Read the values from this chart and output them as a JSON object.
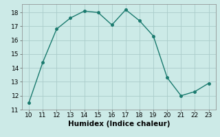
{
  "x": [
    10,
    11,
    12,
    13,
    14,
    15,
    16,
    17,
    18,
    19,
    20,
    21,
    22,
    23
  ],
  "y": [
    11.5,
    14.4,
    16.8,
    17.6,
    18.1,
    18.0,
    17.1,
    18.2,
    17.4,
    16.3,
    13.3,
    12.0,
    12.3,
    12.9
  ],
  "line_color": "#1a7a6e",
  "marker_color": "#1a7a6e",
  "bg_color": "#cceae7",
  "grid_major_color": "#aaccca",
  "xlabel": "Humidex (Indice chaleur)",
  "xlim": [
    9.5,
    23.5
  ],
  "ylim": [
    11,
    18.6
  ],
  "xticks": [
    10,
    11,
    12,
    13,
    14,
    15,
    16,
    17,
    18,
    19,
    20,
    21,
    22,
    23
  ],
  "yticks": [
    11,
    12,
    13,
    14,
    15,
    16,
    17,
    18
  ],
  "xlabel_fontsize": 7.5,
  "tick_fontsize": 6.5,
  "marker_size": 2.5,
  "linewidth": 1.0
}
